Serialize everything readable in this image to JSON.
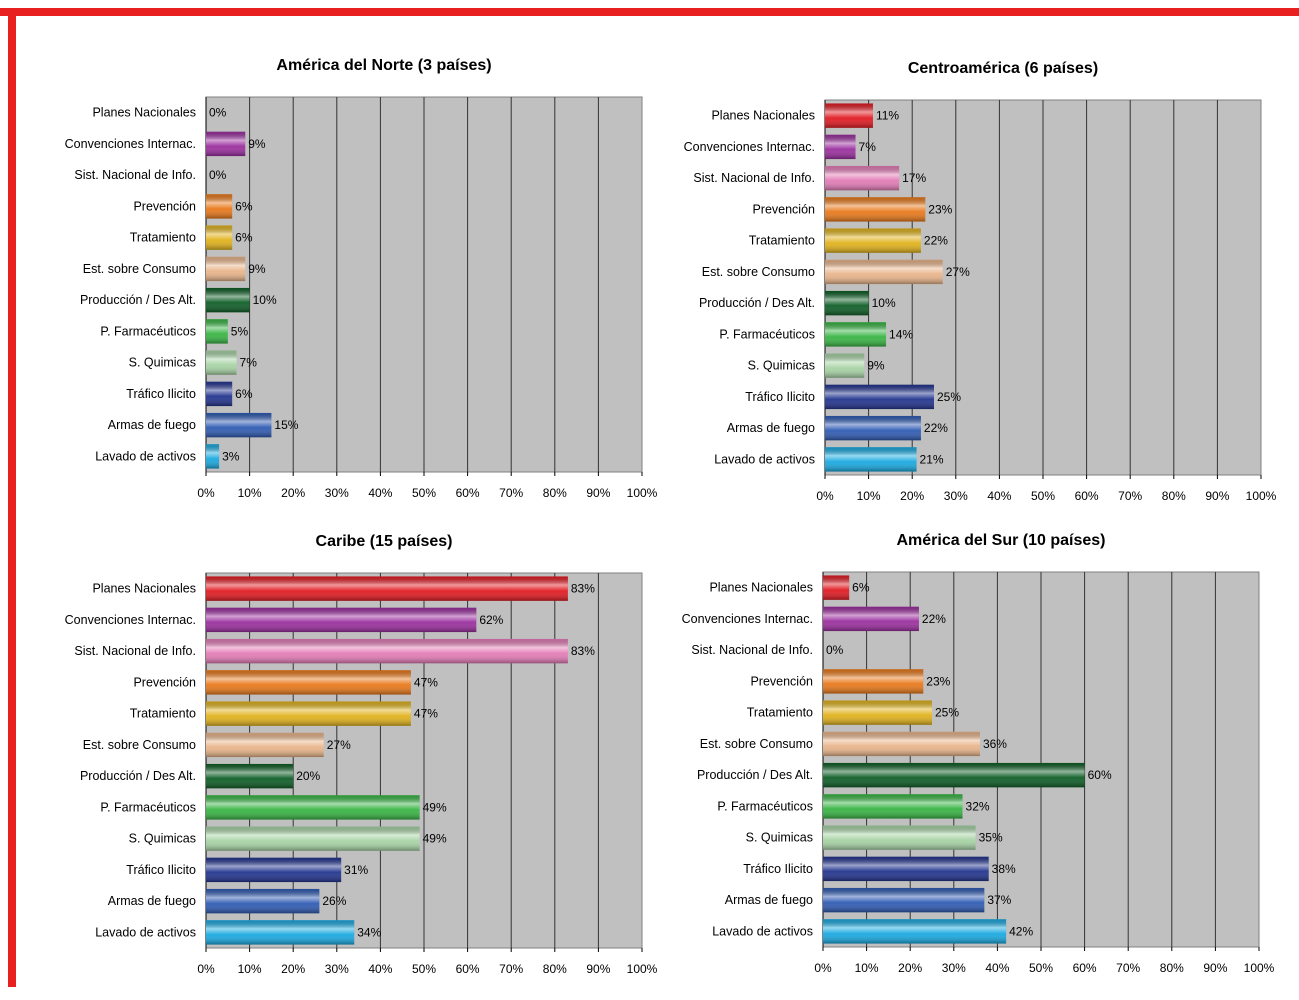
{
  "colors": {
    "frame": "#e8201f",
    "plot_background": "#c0c0c0",
    "bars": [
      "#e11b22",
      "#9b2f9f",
      "#e37cb6",
      "#e8791b",
      "#e0b21c",
      "#e8b48a",
      "#0e5e26",
      "#38b544",
      "#a7d3a5",
      "#23348f",
      "#2f5bb3",
      "#1aa9e0"
    ]
  },
  "chart_data": [
    {
      "type": "bar",
      "orientation": "horizontal",
      "title": "América del Norte (3 países)",
      "categories": [
        "Planes Nacionales",
        "Convenciones Internac.",
        "Sist. Nacional de Info.",
        "Prevención",
        "Tratamiento",
        "Est. sobre Consumo",
        "Producción / Des Alt.",
        "P. Farmacéuticos",
        "S. Quimicas",
        "Tráfico Ilicito",
        "Armas de fuego",
        "Lavado de activos"
      ],
      "values": [
        0,
        9,
        0,
        6,
        6,
        9,
        10,
        5,
        7,
        6,
        15,
        3
      ],
      "value_labels": [
        "0%",
        "9%",
        "0%",
        "6%",
        "6%",
        "9%",
        "10%",
        "5%",
        "7%",
        "6%",
        "15%",
        "3%"
      ],
      "xlim": [
        0,
        100
      ],
      "xticks": [
        "0%",
        "10%",
        "20%",
        "30%",
        "40%",
        "50%",
        "60%",
        "70%",
        "80%",
        "90%",
        "100%"
      ],
      "grid": true
    },
    {
      "type": "bar",
      "orientation": "horizontal",
      "title": "Centroamérica (6 países)",
      "categories": [
        "Planes Nacionales",
        "Convenciones Internac.",
        "Sist. Nacional de Info.",
        "Prevención",
        "Tratamiento",
        "Est. sobre Consumo",
        "Producción / Des Alt.",
        "P. Farmacéuticos",
        "S. Quimicas",
        "Tráfico Ilicito",
        "Armas de fuego",
        "Lavado de activos"
      ],
      "values": [
        11,
        7,
        17,
        23,
        22,
        27,
        10,
        14,
        9,
        25,
        22,
        21
      ],
      "value_labels": [
        "11%",
        "7%",
        "17%",
        "23%",
        "22%",
        "27%",
        "10%",
        "14%",
        "9%",
        "25%",
        "22%",
        "21%"
      ],
      "xlim": [
        0,
        100
      ],
      "xticks": [
        "0%",
        "10%",
        "20%",
        "30%",
        "40%",
        "50%",
        "60%",
        "70%",
        "80%",
        "90%",
        "100%"
      ],
      "grid": true
    },
    {
      "type": "bar",
      "orientation": "horizontal",
      "title": "Caribe (15 países)",
      "categories": [
        "Planes Nacionales",
        "Convenciones Internac.",
        "Sist. Nacional de Info.",
        "Prevención",
        "Tratamiento",
        "Est. sobre Consumo",
        "Producción / Des Alt.",
        "P. Farmacéuticos",
        "S. Quimicas",
        "Tráfico Ilicito",
        "Armas de fuego",
        "Lavado de activos"
      ],
      "values": [
        83,
        62,
        83,
        47,
        47,
        27,
        20,
        49,
        49,
        31,
        26,
        34
      ],
      "value_labels": [
        "83%",
        "62%",
        "83%",
        "47%",
        "47%",
        "27%",
        "20%",
        "49%",
        "49%",
        "31%",
        "26%",
        "34%"
      ],
      "xlim": [
        0,
        100
      ],
      "xticks": [
        "0%",
        "10%",
        "20%",
        "30%",
        "40%",
        "50%",
        "60%",
        "70%",
        "80%",
        "90%",
        "100%"
      ],
      "grid": true
    },
    {
      "type": "bar",
      "orientation": "horizontal",
      "title": "América del Sur (10 países)",
      "categories": [
        "Planes Nacionales",
        "Convenciones Internac.",
        "Sist. Nacional de Info.",
        "Prevención",
        "Tratamiento",
        "Est. sobre Consumo",
        "Producción / Des Alt.",
        "P. Farmacéuticos",
        "S. Quimicas",
        "Tráfico Ilicito",
        "Armas de fuego",
        "Lavado de activos"
      ],
      "values": [
        6,
        22,
        0,
        23,
        25,
        36,
        60,
        32,
        35,
        38,
        37,
        42
      ],
      "value_labels": [
        "6%",
        "22%",
        "0%",
        "23%",
        "25%",
        "36%",
        "60%",
        "32%",
        "35%",
        "38%",
        "37%",
        "42%"
      ],
      "xlim": [
        0,
        100
      ],
      "xticks": [
        "0%",
        "10%",
        "20%",
        "30%",
        "40%",
        "50%",
        "60%",
        "70%",
        "80%",
        "90%",
        "100%"
      ],
      "grid": true
    }
  ]
}
